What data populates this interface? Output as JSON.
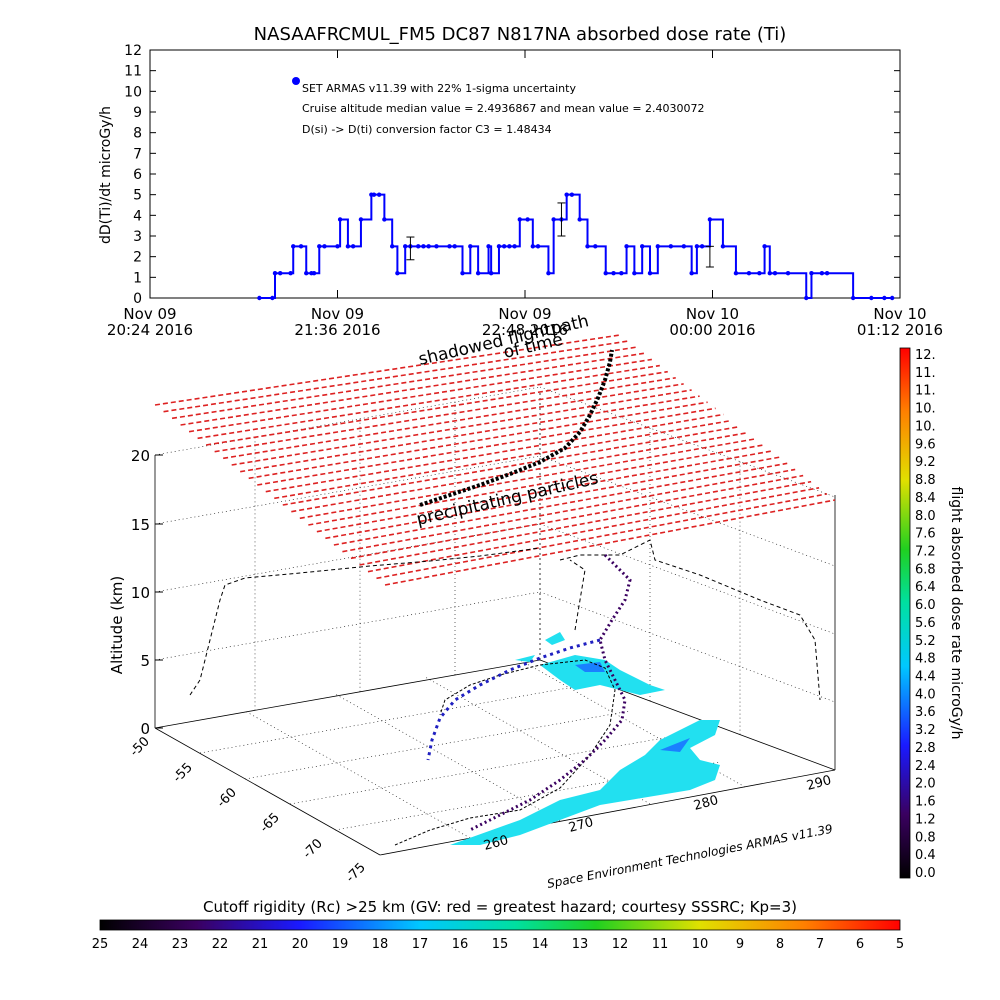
{
  "title": "NASAAFRCMUL_FM5 DC87 N817NA absorbed dose rate (Ti)",
  "chart_data": [
    {
      "type": "line",
      "title": "NASAAFRCMUL_FM5 DC87 N817NA absorbed dose rate (Ti)",
      "ylabel": "dD(Ti)/dt microGy/h",
      "ylim": [
        0,
        12
      ],
      "yticks": [
        "0",
        "1",
        "2",
        "3",
        "4",
        "5",
        "6",
        "7",
        "8",
        "9",
        "10",
        "11",
        "12"
      ],
      "xticks": [
        {
          "day": "Nov 09",
          "time": "20:24 2016"
        },
        {
          "day": "Nov 09",
          "time": "21:36 2016"
        },
        {
          "day": "Nov 09",
          "time": "22:48 2016"
        },
        {
          "day": "Nov 10",
          "time": "00:00 2016"
        },
        {
          "day": "Nov 10",
          "time": "01:12 2016"
        }
      ],
      "xlim_minutes": [
        0,
        288
      ],
      "legend": {
        "label": "SET ARMAS v11.39 with 22% 1-sigma uncertainty",
        "line2": "Cruise altitude median value = 2.4936867 and mean value = 2.4030072",
        "line3": "D(si) -> D(ti) conversion factor C3 = 1.48434"
      },
      "series": [
        {
          "color": "#0000ff",
          "minutes": [
            42,
            47,
            48,
            50,
            54,
            55,
            58,
            60,
            62,
            63,
            65,
            67,
            72,
            73,
            76,
            78,
            81,
            85,
            86,
            88,
            90,
            93,
            95,
            98,
            100,
            103,
            105,
            107,
            110,
            115,
            117,
            120,
            123,
            126,
            130,
            131,
            134,
            136,
            138,
            140,
            142,
            145,
            147,
            149,
            153,
            155,
            158,
            160,
            162,
            165,
            168,
            171,
            175,
            178,
            181,
            183,
            186,
            189,
            192,
            195,
            200,
            205,
            208,
            210,
            212,
            215,
            220,
            225,
            230,
            234,
            236,
            238,
            240,
            245,
            252,
            254,
            258,
            260,
            270,
            277,
            282,
            285
          ],
          "values": [
            0,
            0,
            1.2,
            1.2,
            1.2,
            2.5,
            2.5,
            1.2,
            1.2,
            1.2,
            2.5,
            2.5,
            2.5,
            3.8,
            2.5,
            2.5,
            3.8,
            5,
            5,
            5,
            3.8,
            2.5,
            1.2,
            2.5,
            2.5,
            2.5,
            2.5,
            2.5,
            2.5,
            2.5,
            2.5,
            1.2,
            2.5,
            1.2,
            2.5,
            1.2,
            2.5,
            2.5,
            2.5,
            2.5,
            3.8,
            3.8,
            2.5,
            2.5,
            1.2,
            3.8,
            3.8,
            5,
            5,
            3.8,
            2.5,
            2.5,
            1.2,
            1.2,
            1.2,
            2.5,
            1.2,
            2.5,
            1.2,
            2.5,
            2.5,
            2.5,
            1.2,
            2.5,
            2.5,
            3.8,
            2.5,
            1.2,
            1.2,
            1.2,
            2.5,
            1.2,
            1.2,
            1.2,
            0,
            1.2,
            1.2,
            1.2,
            0,
            0,
            0,
            0
          ]
        }
      ],
      "error_bars": [
        {
          "minute": 100,
          "value": 2.4,
          "err": 0.55
        },
        {
          "minute": 158,
          "value": 3.8,
          "err": 0.8
        },
        {
          "minute": 215,
          "value": 2.0,
          "err": 0.5
        }
      ]
    },
    {
      "type": "scatter",
      "subtype": "3d-trajectory",
      "zlabel": "Altitude (km)",
      "zticks": [
        "0",
        "5",
        "10",
        "15",
        "20"
      ],
      "latitude_ticks": [
        "-50",
        "-55",
        "-60",
        "-65",
        "-70",
        "-75"
      ],
      "longitude_ticks": [
        "260",
        "270",
        "280",
        "290"
      ],
      "annotations": [
        "shadowed flightpath",
        "of time",
        "precipitating particles"
      ],
      "credit": "Space Environment Technologies ARMAS v11.39",
      "colorbar": {
        "label": "flight absorbed dose rate microGy/h",
        "ticks": [
          "12.",
          "11.",
          "11.",
          "10.",
          "10.",
          "9.6",
          "9.2",
          "8.8",
          "8.4",
          "8.0",
          "7.6",
          "7.2",
          "6.8",
          "6.4",
          "6.0",
          "5.6",
          "5.2",
          "4.8",
          "4.4",
          "4.0",
          "3.6",
          "3.2",
          "2.8",
          "2.4",
          "2.0",
          "1.6",
          "1.2",
          "0.8",
          "0.4",
          "0.0"
        ]
      }
    },
    {
      "type": "heatmap",
      "subtype": "colorbar",
      "title": "Cutoff rigidity (Rc) >25 km (GV: red = greatest hazard; courtesy SSSRC; Kp=3)",
      "ticks": [
        "25",
        "24",
        "23",
        "22",
        "21",
        "20",
        "19",
        "18",
        "17",
        "16",
        "15",
        "14",
        "13",
        "12",
        "11",
        "10",
        "9",
        "8",
        "7",
        "6",
        "5"
      ]
    }
  ],
  "colors": {
    "plane_red": "#dd2222",
    "track_blue": "#0000ff",
    "cutoff_cyan": "#22e0f0"
  }
}
